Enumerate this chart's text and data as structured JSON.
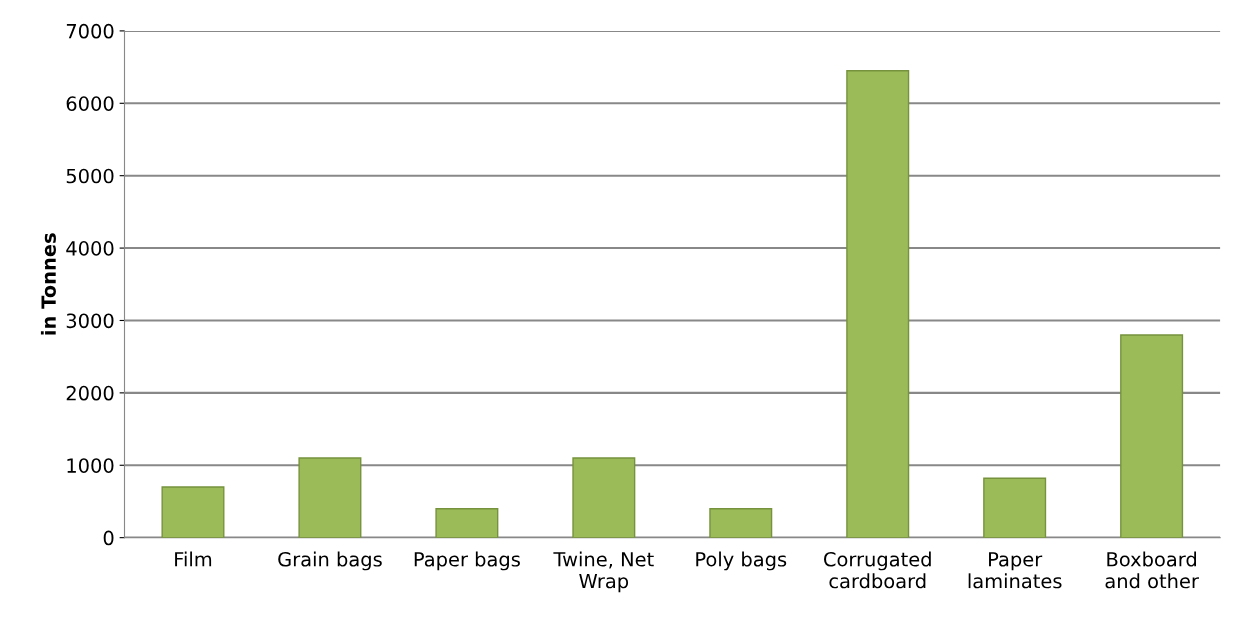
{
  "chart_data": {
    "type": "bar",
    "ylabel": "in Tonnes",
    "categories": [
      "Film",
      "Grain bags",
      "Paper bags",
      "Twine, Net\nWrap",
      "Poly bags",
      "Corrugated\ncardboard",
      "Paper\nlaminates",
      "Boxboard\nand other"
    ],
    "values": [
      700,
      1100,
      400,
      1100,
      400,
      6450,
      820,
      2800
    ],
    "color": "#9bbb59",
    "ylim": [
      0,
      7000
    ],
    "yticks": [
      0,
      1000,
      2000,
      3000,
      4000,
      5000,
      6000,
      7000
    ],
    "grid": "y"
  }
}
